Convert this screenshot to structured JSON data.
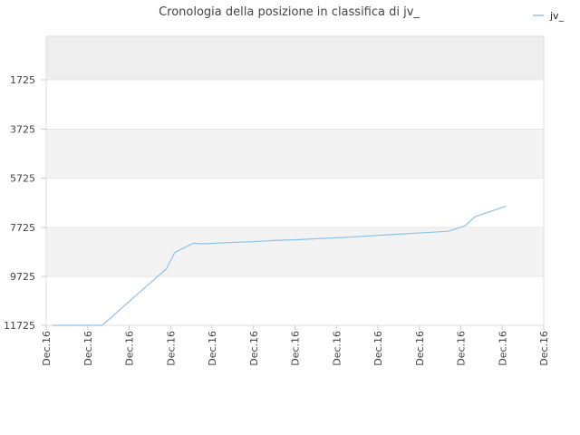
{
  "chart_data": {
    "type": "line",
    "title": "Cronologia della posizione in classifica di jv_",
    "xlabel": "",
    "ylabel": "",
    "y_inverted": true,
    "ylim": [
      11725,
      0
    ],
    "y_ticks": [
      1725,
      3725,
      5725,
      7725,
      9725,
      11725
    ],
    "y_tick_labels": [
      "1725",
      "3725",
      "5725",
      "7725",
      "9725",
      "11725"
    ],
    "x_tick_labels": [
      "Dec.16",
      "Dec.16",
      "Dec.16",
      "Dec.16",
      "Dec.16",
      "Dec.16",
      "Dec.16",
      "Dec.16",
      "Dec.16",
      "Dec.16",
      "Dec.16",
      "Dec.16",
      "Dec.16"
    ],
    "legend": {
      "position": "top-right"
    },
    "colors": {
      "line": "#8ec3eb",
      "band_light": "#f3f3f3",
      "band_top": "#eeeeee",
      "axis": "#dddddd"
    },
    "series": [
      {
        "name": "jv_",
        "x": [
          0.15,
          0.35,
          0.6,
          1.35,
          2.2,
          2.9,
          3.1,
          3.55,
          3.8,
          4.3,
          4.9,
          5.5,
          6.1,
          6.7,
          7.3,
          7.9,
          8.5,
          9.1,
          9.7,
          10.1,
          10.35,
          11.1
        ],
        "y": [
          11725,
          11725,
          11725,
          11725,
          10450,
          9410,
          8750,
          8370,
          8390,
          8350,
          8310,
          8260,
          8220,
          8170,
          8120,
          8060,
          8000,
          7940,
          7880,
          7660,
          7280,
          6860
        ]
      }
    ]
  }
}
